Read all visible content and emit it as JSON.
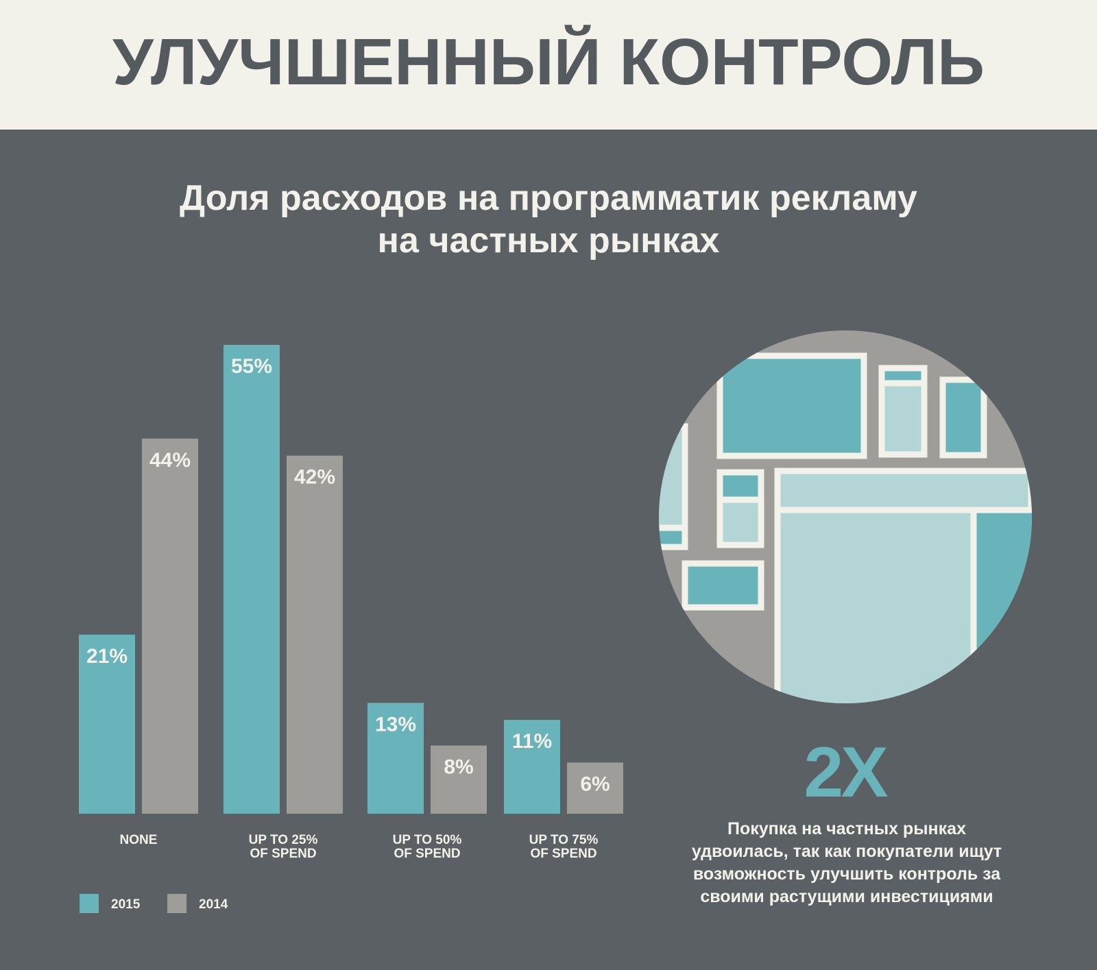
{
  "header": {
    "title": "УЛУЧШЕННЫЙ КОНТРОЛЬ"
  },
  "subtitle": {
    "line1": "Доля расходов на программатик рекламу",
    "line2": "на частных рынках"
  },
  "colors": {
    "series_2015": "#69b4bb",
    "series_2014": "#9e9d99",
    "background": "#5b6065",
    "cream": "#f3f2ea",
    "light_teal": "#b3d5d6"
  },
  "chart_data": {
    "type": "bar",
    "title": "Доля расходов на программатик рекламу на частных рынках",
    "categories": [
      [
        "NONE"
      ],
      [
        "UP TO 25%",
        "OF SPEND"
      ],
      [
        "UP TO 50%",
        "OF SPEND"
      ],
      [
        "UP TO 75%",
        "OF SPEND"
      ]
    ],
    "series": [
      {
        "name": "2015",
        "values": [
          21,
          55,
          13,
          11
        ],
        "labels": [
          "21%",
          "55%",
          "13%",
          "11%"
        ]
      },
      {
        "name": "2014",
        "values": [
          44,
          42,
          8,
          6
        ],
        "labels": [
          "44%",
          "42%",
          "8%",
          "6%"
        ]
      }
    ],
    "ylim": [
      0,
      55
    ],
    "xlabel": "",
    "ylabel": "",
    "legend": "bottom-left",
    "grid": false
  },
  "stat": {
    "value": "2X",
    "text": "Покупка на частных рынках удвоилась,  так как покупатели ищут  возможность улучшить контроль за своими растущими инвестициями"
  }
}
